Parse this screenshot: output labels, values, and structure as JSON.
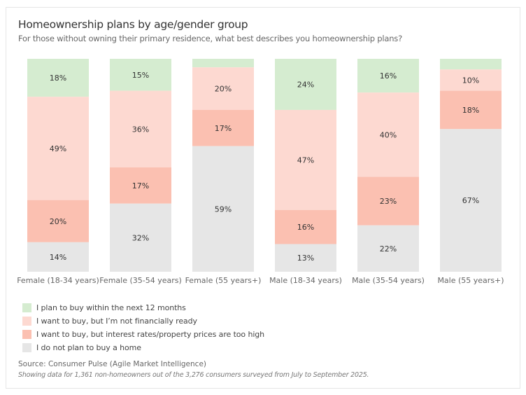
{
  "chart_data": {
    "type": "bar",
    "stacked": true,
    "orientation": "vertical",
    "title": "Homeownership plans by age/gender group",
    "subtitle": "For those without owning their primary residence, what best describes you homeownership plans?",
    "xlabel": "",
    "ylabel": "",
    "ylim": [
      0,
      100
    ],
    "grid": false,
    "legend_position": "bottom-left",
    "categories": [
      "Female (18-34 years)",
      "Female (35-54 years)",
      "Female (55 years+)",
      "Male (18-34 years)",
      "Male (35-54 years)",
      "Male (55 years+)"
    ],
    "series": [
      {
        "name": "I plan to buy within the next 12 months",
        "color": "#d5ecd0",
        "values": [
          18,
          15,
          4,
          24,
          16,
          5
        ],
        "labels": [
          "18%",
          "15%",
          "",
          "24%",
          "16%",
          ""
        ]
      },
      {
        "name": "I want to buy, but I’m not financially ready",
        "color": "#fdd9d1",
        "values": [
          49,
          36,
          20,
          47,
          40,
          10
        ],
        "labels": [
          "49%",
          "36%",
          "20%",
          "47%",
          "40%",
          "10%"
        ]
      },
      {
        "name": "I want to buy, but interest rates/property prices are too high",
        "color": "#fbc0b1",
        "values": [
          20,
          17,
          17,
          16,
          23,
          18
        ],
        "labels": [
          "20%",
          "17%",
          "17%",
          "16%",
          "23%",
          "18%"
        ]
      },
      {
        "name": "I do not plan to buy a home",
        "color": "#e6e6e6",
        "values": [
          14,
          32,
          59,
          13,
          22,
          67
        ],
        "labels": [
          "14%",
          "32%",
          "59%",
          "13%",
          "22%",
          "67%"
        ]
      }
    ]
  },
  "header": {
    "title": "Homeownership plans by age/gender group",
    "subtitle": "For those without owning their primary residence, what best describes you homeownership plans?"
  },
  "legend": [
    {
      "label": "I plan to buy within the next 12 months",
      "color": "#d5ecd0"
    },
    {
      "label": "I want to buy, but I’m not financially ready",
      "color": "#fdd9d1"
    },
    {
      "label": "I want to buy, but interest rates/property prices are too high",
      "color": "#fbc0b1"
    },
    {
      "label": "I do not plan to buy a home",
      "color": "#e6e6e6"
    }
  ],
  "footer": {
    "source": "Source: Consumer Pulse (Agile Market Intelligence)",
    "note": "Showing data for 1,361 non-homeowners out of the 3,276 consumers surveyed from July to September 2025."
  }
}
